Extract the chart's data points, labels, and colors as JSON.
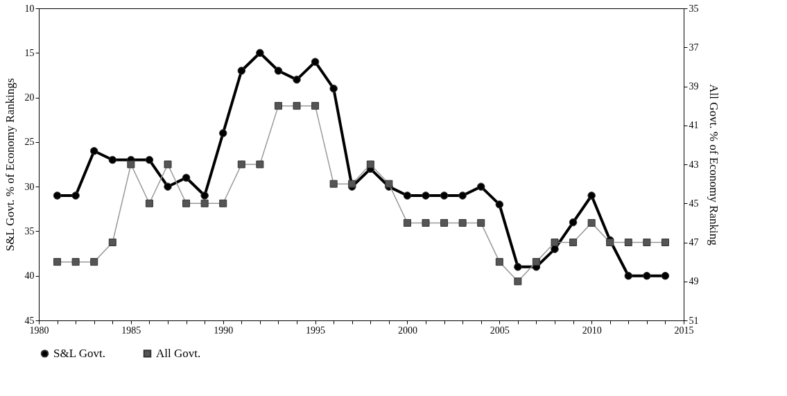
{
  "chart_data": {
    "type": "line",
    "x": [
      1981,
      1982,
      1983,
      1984,
      1985,
      1986,
      1987,
      1988,
      1989,
      1990,
      1991,
      1992,
      1993,
      1994,
      1995,
      1996,
      1997,
      1998,
      1999,
      2000,
      2001,
      2002,
      2003,
      2004,
      2005,
      2006,
      2007,
      2008,
      2009,
      2010,
      2011,
      2012,
      2013,
      2014
    ],
    "series": [
      {
        "name": "S&L Govt.",
        "color": "#000000",
        "marker": "circle",
        "values": [
          31,
          31,
          26,
          27,
          27,
          27,
          30,
          29,
          31,
          24,
          17,
          15,
          17,
          18,
          16,
          19,
          30,
          28,
          30,
          31,
          31,
          31,
          31,
          30,
          32,
          39,
          39,
          37,
          34,
          31,
          36,
          40,
          40,
          40
        ]
      },
      {
        "name": "All Govt.",
        "color": "#555555",
        "marker": "square",
        "axis": "y2",
        "values": [
          48,
          48,
          48,
          47,
          43,
          45,
          43,
          45,
          45,
          45,
          43,
          43,
          40,
          40,
          40,
          44,
          44,
          43,
          44,
          46,
          46,
          46,
          46,
          46,
          48,
          49,
          48,
          47,
          47,
          46,
          47,
          47,
          47,
          47
        ]
      }
    ],
    "ylabel": "S&L Govt. % of Economy Rankings",
    "y2label": "All Govt. % of Economy Ranking",
    "xlim": [
      1980,
      2015
    ],
    "xticks": [
      1980,
      {
        "value": 1981,
        "label": null
      },
      {
        "value": 1982,
        "label": null
      },
      {
        "value": 1983,
        "label": null
      },
      {
        "value": 1984,
        "label": null
      },
      1985,
      {
        "value": 1986,
        "label": null
      },
      {
        "value": 1987,
        "label": null
      },
      {
        "value": 1988,
        "label": null
      },
      {
        "value": 1989,
        "label": null
      },
      1990,
      {
        "value": 1991,
        "label": null
      },
      {
        "value": 1992,
        "label": null
      },
      {
        "value": 1993,
        "label": null
      },
      {
        "value": 1994,
        "label": null
      },
      1995,
      {
        "value": 1996,
        "label": null
      },
      {
        "value": 1997,
        "label": null
      },
      {
        "value": 1998,
        "label": null
      },
      {
        "value": 1999,
        "label": null
      },
      2000,
      {
        "value": 2001,
        "label": null
      },
      {
        "value": 2002,
        "label": null
      },
      {
        "value": 2003,
        "label": null
      },
      {
        "value": 2004,
        "label": null
      },
      2005,
      {
        "value": 2006,
        "label": null
      },
      {
        "value": 2007,
        "label": null
      },
      {
        "value": 2008,
        "label": null
      },
      {
        "value": 2009,
        "label": null
      },
      2010,
      {
        "value": 2011,
        "label": null
      },
      {
        "value": 2012,
        "label": null
      },
      {
        "value": 2013,
        "label": null
      },
      {
        "value": 2014,
        "label": null
      },
      2015
    ],
    "ylim": [
      45,
      10
    ],
    "yticks": [
      10,
      15,
      20,
      25,
      30,
      35,
      40,
      45
    ],
    "y2lim": [
      51,
      35
    ],
    "y2ticks": [
      35,
      37,
      39,
      41,
      43,
      45,
      47,
      49,
      51
    ],
    "grid": false,
    "legend": "bottom"
  }
}
